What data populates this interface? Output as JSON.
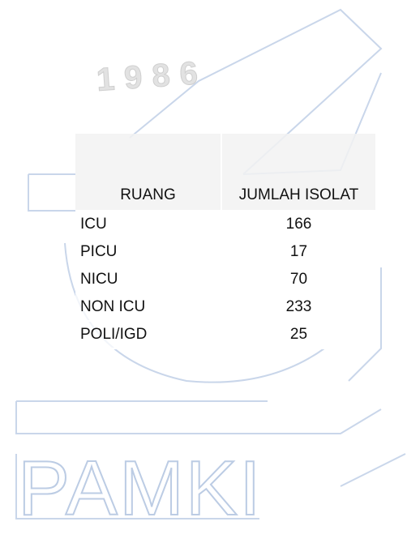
{
  "watermark": {
    "year": "1986",
    "name": "PAMKI"
  },
  "table": {
    "headers": [
      "RUANG",
      "JUMLAH ISOLAT"
    ],
    "rows": [
      [
        "ICU",
        "166"
      ],
      [
        "PICU",
        "17"
      ],
      [
        "NICU",
        "70"
      ],
      [
        "NON ICU",
        "233"
      ],
      [
        "POLI/IGD",
        "25"
      ]
    ]
  }
}
